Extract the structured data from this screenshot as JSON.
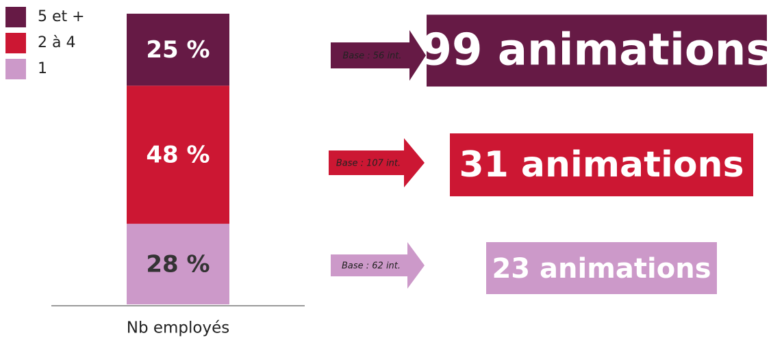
{
  "chart_data": {
    "type": "stacked_bar",
    "categories": [
      "Nb employés"
    ],
    "series": [
      {
        "name": "1",
        "color": "#cc99c9",
        "values": [
          28
        ],
        "value_labels": [
          "28 %"
        ],
        "base": "Base : 62 int.",
        "result": "23 animations"
      },
      {
        "name": "2 à 4",
        "color": "#cc1733",
        "values": [
          48
        ],
        "value_labels": [
          "48 %"
        ],
        "base": "Base : 107 int.",
        "result": "31 animations"
      },
      {
        "name": "5 et +",
        "color": "#661a45",
        "values": [
          25
        ],
        "value_labels": [
          "25 %"
        ],
        "base": "Base : 56 int.",
        "result": "99 animations"
      }
    ],
    "ylim": [
      0,
      101
    ]
  }
}
